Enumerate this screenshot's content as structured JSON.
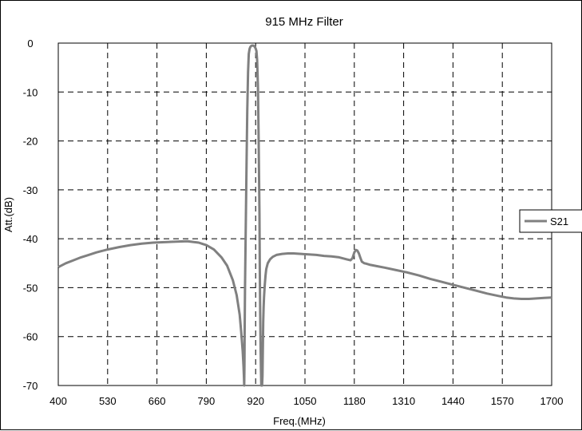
{
  "chart_data": {
    "type": "line",
    "title": "915 MHz Filter",
    "xlabel": "Freq.(MHz)",
    "ylabel": "Att.(dB)",
    "xlim": [
      400,
      1700
    ],
    "ylim": [
      -70,
      0
    ],
    "xticks": [
      400,
      530,
      660,
      790,
      920,
      1050,
      1180,
      1310,
      1440,
      1570,
      1700
    ],
    "yticks": [
      0,
      -10,
      -20,
      -30,
      -40,
      -50,
      -60,
      -70
    ],
    "grid": true,
    "legend_position": "right",
    "colors": {
      "series": "#808080",
      "grid": "#000000"
    },
    "series": [
      {
        "name": "S21",
        "x": [
          400,
          420,
          440,
          460,
          480,
          500,
          530,
          560,
          590,
          620,
          650,
          680,
          710,
          740,
          770,
          790,
          810,
          830,
          845,
          860,
          870,
          878,
          882,
          886,
          888,
          889,
          890,
          890.5,
          891,
          892,
          894,
          896,
          898,
          900,
          902,
          904,
          906,
          908,
          910,
          912,
          914,
          916,
          918,
          920,
          922,
          924,
          926,
          928,
          930,
          931,
          932,
          933,
          934,
          935,
          936,
          937,
          938,
          939,
          940,
          941,
          942,
          944,
          946,
          948,
          952,
          958,
          965,
          975,
          990,
          1005,
          1020,
          1040,
          1060,
          1080,
          1100,
          1120,
          1140,
          1160,
          1170,
          1175,
          1180,
          1184,
          1188,
          1192,
          1196,
          1200,
          1206,
          1212,
          1220,
          1240,
          1260,
          1290,
          1320,
          1350,
          1380,
          1410,
          1440,
          1470,
          1500,
          1530,
          1560,
          1580,
          1600,
          1620,
          1640,
          1660,
          1680,
          1700
        ],
        "y": [
          -45.8,
          -45.0,
          -44.4,
          -43.8,
          -43.3,
          -42.8,
          -42.2,
          -41.7,
          -41.3,
          -41.0,
          -40.8,
          -40.7,
          -40.6,
          -40.5,
          -40.8,
          -41.3,
          -42.2,
          -43.8,
          -45.5,
          -48.5,
          -51.5,
          -55.5,
          -59.0,
          -63.0,
          -66.0,
          -68.0,
          -70.0,
          -66.0,
          -60.0,
          -50.0,
          -38.0,
          -25.0,
          -14.0,
          -6.0,
          -2.2,
          -1.2,
          -0.8,
          -0.6,
          -0.5,
          -0.5,
          -0.5,
          -0.6,
          -0.8,
          -1.1,
          -1.6,
          -3.5,
          -9.0,
          -20.0,
          -35.0,
          -46.0,
          -55.0,
          -62.0,
          -67.0,
          -70.0,
          -70.0,
          -70.0,
          -68.0,
          -63.0,
          -57.0,
          -54.0,
          -52.0,
          -49.5,
          -47.5,
          -46.2,
          -45.0,
          -44.2,
          -43.7,
          -43.3,
          -43.1,
          -43.0,
          -43.0,
          -43.1,
          -43.2,
          -43.3,
          -43.5,
          -43.6,
          -43.8,
          -44.2,
          -44.4,
          -44.0,
          -42.8,
          -42.3,
          -42.4,
          -43.0,
          -43.9,
          -44.7,
          -45.0,
          -45.1,
          -45.3,
          -45.6,
          -45.9,
          -46.4,
          -46.9,
          -47.5,
          -48.2,
          -48.8,
          -49.4,
          -50.0,
          -50.6,
          -51.2,
          -51.7,
          -52.0,
          -52.2,
          -52.3,
          -52.3,
          -52.2,
          -52.1,
          -52.0
        ]
      }
    ]
  }
}
